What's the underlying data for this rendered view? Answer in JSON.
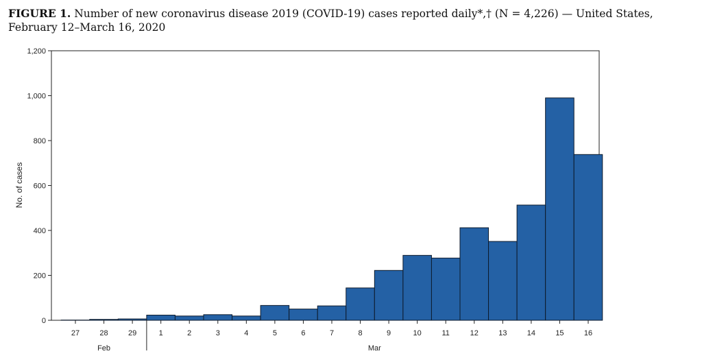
{
  "title": {
    "label": "FIGURE 1.",
    "text": "Number of new coronavirus disease 2019 (COVID-19) cases reported daily*,† (N = 4,226) — United States, February 12–March 16, 2020"
  },
  "chart_data": {
    "type": "bar",
    "title": "Number of new coronavirus disease 2019 (COVID-19) cases reported daily*,† (N = 4,226) — United States, February 12–March 16, 2020",
    "xlabel": "",
    "ylabel": "No. of cases",
    "ylim": [
      0,
      1200
    ],
    "yticks": [
      0,
      200,
      400,
      600,
      800,
      1000,
      1200
    ],
    "ytick_labels": [
      "0",
      "200",
      "400",
      "600",
      "800",
      "1,000",
      "1,200"
    ],
    "categories": [
      "27",
      "28",
      "29",
      "1",
      "2",
      "3",
      "4",
      "5",
      "6",
      "7",
      "8",
      "9",
      "10",
      "11",
      "12",
      "13",
      "14",
      "15",
      "16"
    ],
    "values": [
      1,
      4,
      6,
      23,
      19,
      25,
      19,
      66,
      50,
      64,
      144,
      222,
      289,
      277,
      412,
      351,
      513,
      990,
      738
    ],
    "month_groups": [
      {
        "label": "Feb",
        "count": 3
      },
      {
        "label": "Mar",
        "count": 16
      }
    ],
    "bar_color": "#2461a5",
    "bar_edge": "#0d1a2b",
    "grid": false
  }
}
